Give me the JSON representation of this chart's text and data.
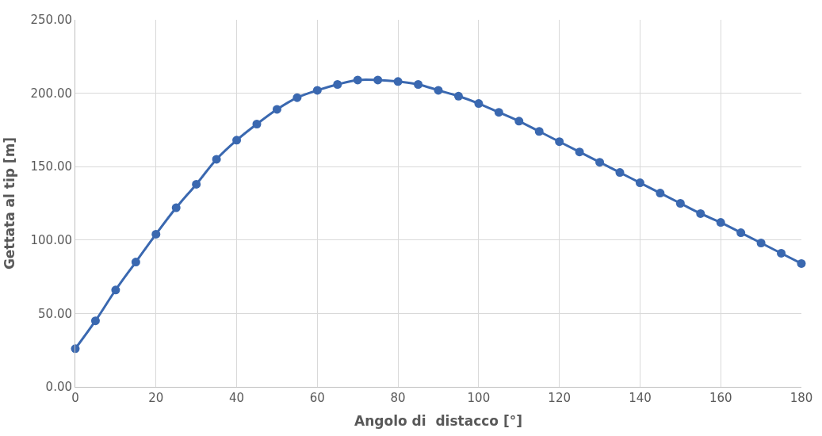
{
  "chart_data": {
    "type": "line",
    "xlabel": "Angolo di  distacco [°]",
    "ylabel": "Gettata al tip [m]",
    "x": [
      0,
      5,
      10,
      15,
      20,
      25,
      30,
      35,
      40,
      45,
      50,
      55,
      60,
      65,
      70,
      75,
      80,
      85,
      90,
      95,
      100,
      105,
      110,
      115,
      120,
      125,
      130,
      135,
      140,
      145,
      150,
      155,
      160,
      165,
      170,
      175,
      180
    ],
    "series": [
      {
        "color": "#3a68b0",
        "values": [
          26,
          45,
          66,
          85,
          104,
          122,
          138,
          155,
          168,
          179,
          189,
          197,
          202,
          206,
          209,
          209,
          208,
          206,
          202,
          198,
          193,
          187,
          181,
          174,
          167,
          160,
          153,
          146,
          139,
          132,
          125,
          118,
          112,
          105,
          98,
          91,
          84
        ]
      }
    ],
    "xlim": [
      0,
      180
    ],
    "xticks": [
      0,
      20,
      40,
      60,
      80,
      100,
      120,
      140,
      160,
      180
    ],
    "ylim": [
      0,
      250
    ],
    "yticks": [
      {
        "value": 0,
        "label": "0.00"
      },
      {
        "value": 50,
        "label": "50.00"
      },
      {
        "value": 100,
        "label": "100.00"
      },
      {
        "value": 150,
        "label": "150.00"
      },
      {
        "value": 200,
        "label": "200.00"
      },
      {
        "value": 250,
        "label": "250.00"
      }
    ],
    "grid": true,
    "marker": "circle",
    "line_style": "solid",
    "legend": false
  }
}
